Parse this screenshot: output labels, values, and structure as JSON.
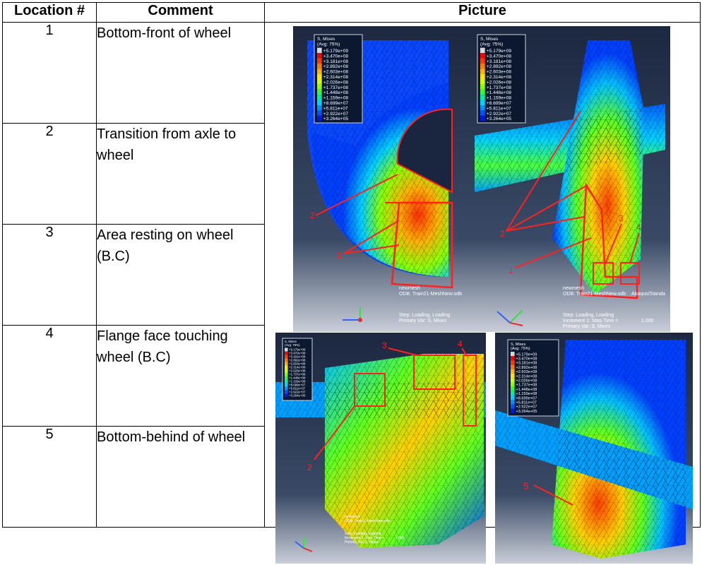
{
  "table": {
    "headers": [
      "Location #",
      "Comment",
      "Picture"
    ],
    "rows": [
      {
        "location": "1",
        "comment": "Bottom-front of wheel"
      },
      {
        "location": "2",
        "comment": "Transition from axle to wheel"
      },
      {
        "location": "3",
        "comment": "Area resting on wheel (B.C)"
      },
      {
        "location": "4",
        "comment": "Flange face touching wheel (B.C)"
      },
      {
        "location": "5",
        "comment": "Bottom-behind of wheel"
      }
    ]
  },
  "fea": {
    "legend_title": "S, Mises",
    "legend_subtitle": "(Avg: 75%)",
    "legend_values": [
      "+5.179e+09",
      "+3.470e+08",
      "+3.181e+08",
      "+2.892e+08",
      "+2.603e+08",
      "+2.314e+08",
      "+2.026e+08",
      "+1.737e+08",
      "+1.448e+08",
      "+1.159e+08",
      "+8.699e+07",
      "+5.811e+07",
      "+2.922e+07",
      "+3.264e+05"
    ],
    "legend_colors": [
      "#d8d8d8",
      "#ff0000",
      "#ff3c00",
      "#ff7a00",
      "#ffb400",
      "#ffe600",
      "#d2ff00",
      "#8cff00",
      "#2cff3a",
      "#00f0a0",
      "#00d2ff",
      "#0090ff",
      "#0050ff",
      "#0018e0"
    ],
    "model_name": "newmesh",
    "odb": "ODB: Train21-MeshNew.odb",
    "solver": "Abaqus/Standa",
    "step": "Step: Loading, Loading",
    "increment": "Increment     1: Step Time = ",
    "step_time": "1.000",
    "primary_var": "Primary Var: S, Mises",
    "callouts": [
      "1",
      "2",
      "3",
      "4",
      "5"
    ]
  }
}
